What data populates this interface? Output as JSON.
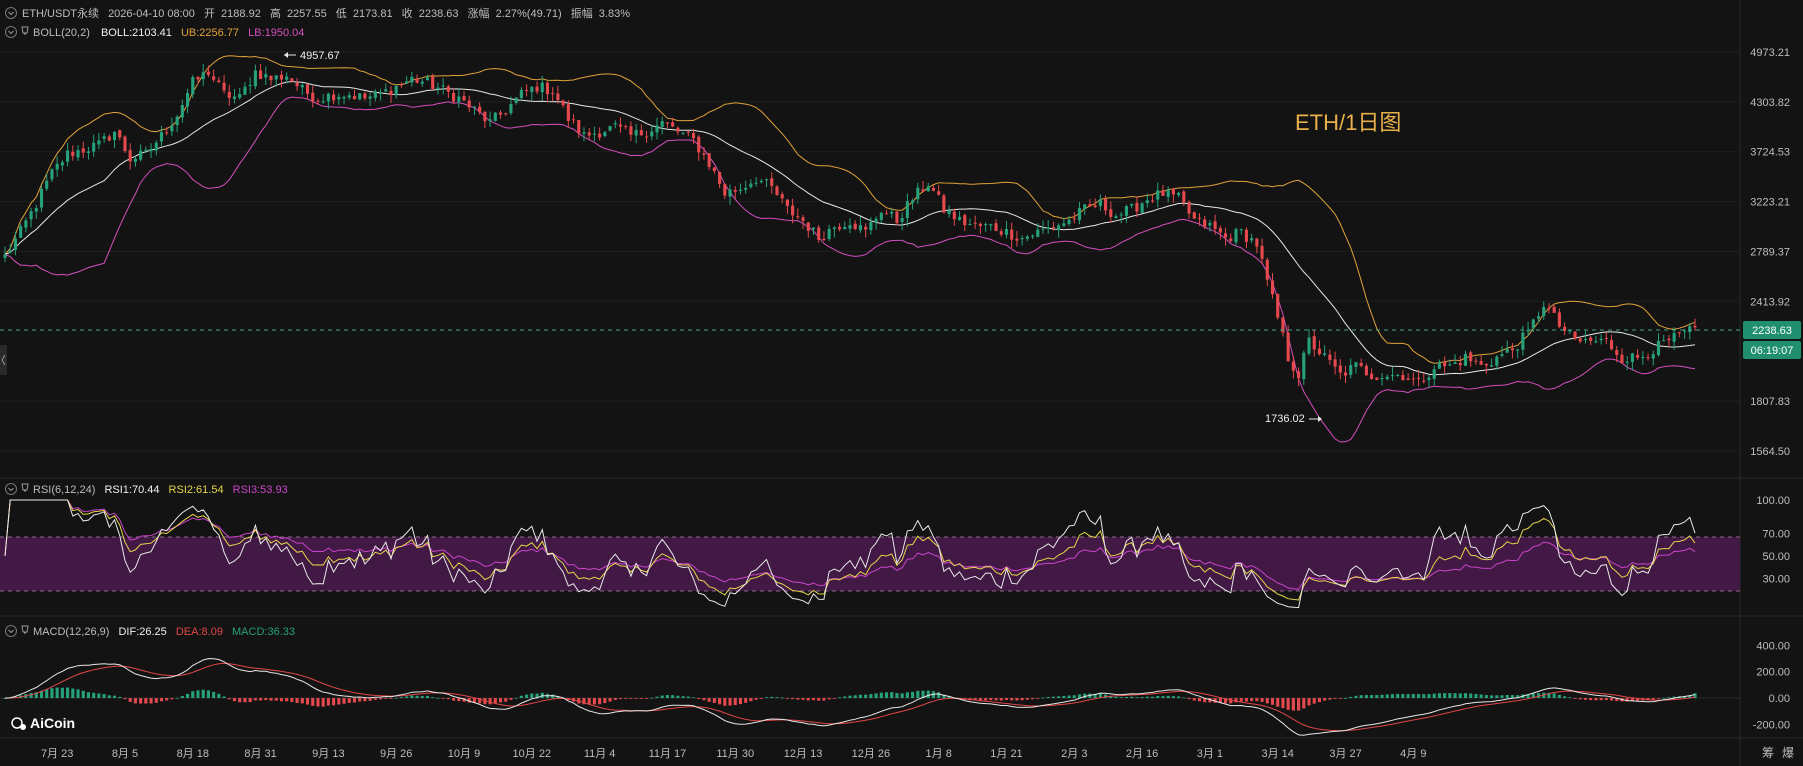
{
  "header": {
    "row1": {
      "symbol": "ETH/USDT永续",
      "datetime": "2026-04-10 08:00",
      "open_label": "开",
      "open": "2188.92",
      "high_label": "高",
      "high": "2257.55",
      "low_label": "低",
      "low": "2173.81",
      "close_label": "收",
      "close": "2238.63",
      "change_label": "涨幅",
      "change": "2.27%(49.71)",
      "amp_label": "振幅",
      "amp": "3.83%"
    },
    "row2": {
      "name": "BOLL(20,2)",
      "mid": "BOLL:2103.41",
      "ub": "UB:2256.77",
      "lb": "LB:1950.04"
    }
  },
  "watermark": "ETH/1日图",
  "annotations": {
    "high": "4957.67",
    "low": "1736.02"
  },
  "price_tag": {
    "price": "2238.63",
    "countdown": "06:19:07"
  },
  "rsi_header": {
    "name": "RSI(6,12,24)",
    "rsi1": "RSI1:70.44",
    "rsi2": "RSI2:61.54",
    "rsi3": "RSI3:53.93"
  },
  "macd_header": {
    "name": "MACD(12,26,9)",
    "dif": "DIF:26.25",
    "dea": "DEA:8.09",
    "macd": "MACD:36.33"
  },
  "logo": "AiCoin",
  "right_buttons": [
    "筹",
    "爆"
  ],
  "colors": {
    "up": "#26a17b",
    "down": "#e5494d",
    "mid": "#e8e8e8",
    "ub": "#e0a23a",
    "lb": "#d44fbf",
    "rsi1": "#e8e8e8",
    "rsi2": "#e6d64a",
    "rsi3": "#cc44cc",
    "dif": "#e8e8e8",
    "dea": "#e04848"
  },
  "chart_data": [
    {
      "type": "candlestick",
      "title": "ETH/USDT永续",
      "interval": "1日",
      "y_ticks": [
        "4973.21",
        "4303.82",
        "3724.53",
        "3223.21",
        "2789.37",
        "2413.92",
        "1807.83",
        "1564.50"
      ],
      "ylim": [
        1480,
        5150
      ],
      "x_ticks": [
        "7月 23",
        "8月 5",
        "8月 18",
        "8月 31",
        "9月 13",
        "9月 26",
        "10月 9",
        "10月 22",
        "11月 4",
        "11月 17",
        "11月 30",
        "12月 13",
        "12月 26",
        "1月 8",
        "1月 21",
        "2月 3",
        "2月 16",
        "3月 1",
        "3月 14",
        "3月 27",
        "4月 9"
      ],
      "close_points": [
        [
          0,
          2750
        ],
        [
          3,
          2950
        ],
        [
          6,
          3200
        ],
        [
          9,
          3500
        ],
        [
          12,
          3700
        ],
        [
          15,
          3750
        ],
        [
          18,
          3800
        ],
        [
          21,
          3950
        ],
        [
          24,
          3650
        ],
        [
          27,
          3700
        ],
        [
          30,
          3900
        ],
        [
          33,
          4150
        ],
        [
          36,
          4550
        ],
        [
          39,
          4700
        ],
        [
          42,
          4400
        ],
        [
          45,
          4350
        ],
        [
          48,
          4700
        ],
        [
          51,
          4600
        ],
        [
          54,
          4650
        ],
        [
          57,
          4450
        ],
        [
          60,
          4350
        ],
        [
          63,
          4400
        ],
        [
          66,
          4400
        ],
        [
          69,
          4350
        ],
        [
          72,
          4400
        ],
        [
          75,
          4500
        ],
        [
          78,
          4600
        ],
        [
          81,
          4550
        ],
        [
          84,
          4450
        ],
        [
          87,
          4350
        ],
        [
          90,
          4200
        ],
        [
          93,
          4050
        ],
        [
          96,
          4200
        ],
        [
          99,
          4400
        ],
        [
          102,
          4500
        ],
        [
          105,
          4450
        ],
        [
          108,
          4100
        ],
        [
          111,
          3900
        ],
        [
          114,
          3950
        ],
        [
          117,
          4000
        ],
        [
          120,
          3900
        ],
        [
          123,
          3950
        ],
        [
          126,
          4050
        ],
        [
          129,
          3950
        ],
        [
          132,
          3850
        ],
        [
          135,
          3600
        ],
        [
          138,
          3300
        ],
        [
          141,
          3350
        ],
        [
          144,
          3450
        ],
        [
          147,
          3350
        ],
        [
          150,
          3150
        ],
        [
          153,
          3050
        ],
        [
          156,
          2900
        ],
        [
          159,
          3000
        ],
        [
          162,
          3050
        ],
        [
          165,
          2950
        ],
        [
          168,
          3150
        ],
        [
          171,
          3050
        ],
        [
          174,
          3250
        ],
        [
          177,
          3400
        ],
        [
          180,
          3150
        ],
        [
          183,
          3050
        ],
        [
          186,
          3000
        ],
        [
          189,
          3000
        ],
        [
          192,
          2950
        ],
        [
          195,
          2900
        ],
        [
          198,
          2950
        ],
        [
          201,
          3000
        ],
        [
          204,
          3050
        ],
        [
          207,
          3150
        ],
        [
          210,
          3200
        ],
        [
          213,
          3100
        ],
        [
          216,
          3150
        ],
        [
          219,
          3250
        ],
        [
          222,
          3300
        ],
        [
          225,
          3250
        ],
        [
          228,
          3050
        ],
        [
          231,
          3000
        ],
        [
          234,
          2900
        ],
        [
          237,
          2950
        ],
        [
          240,
          2850
        ],
        [
          242,
          2550
        ],
        [
          244,
          2300
        ],
        [
          246,
          2050
        ],
        [
          248,
          1950
        ],
        [
          250,
          2150
        ],
        [
          253,
          2050
        ],
        [
          256,
          1950
        ],
        [
          259,
          2000
        ],
        [
          262,
          1950
        ],
        [
          265,
          1950
        ],
        [
          268,
          1950
        ],
        [
          271,
          1900
        ],
        [
          274,
          2000
        ],
        [
          277,
          2000
        ],
        [
          280,
          2050
        ],
        [
          283,
          2000
        ],
        [
          286,
          2050
        ],
        [
          289,
          2100
        ],
        [
          292,
          2200
        ],
        [
          295,
          2400
        ],
        [
          298,
          2250
        ],
        [
          301,
          2150
        ],
        [
          304,
          2150
        ],
        [
          307,
          2150
        ],
        [
          310,
          2050
        ],
        [
          313,
          2050
        ],
        [
          316,
          2100
        ],
        [
          319,
          2150
        ],
        [
          322,
          2200
        ],
        [
          324,
          2238.63
        ]
      ],
      "annotations": [
        {
          "label": "4957.67",
          "type": "high"
        },
        {
          "label": "1736.02",
          "type": "low"
        }
      ],
      "last_price": 2238.63,
      "bollinger": {
        "mid": 2103.41,
        "ub": 2256.77,
        "lb": 1950.04
      }
    },
    {
      "type": "line",
      "title": "RSI(6,12,24)",
      "y_ticks": [
        "100.00",
        "70.00",
        "50.00",
        "30.00"
      ],
      "ylim": [
        0,
        100
      ],
      "bands": [
        30,
        70
      ],
      "series": [
        {
          "name": "RSI1",
          "last": 70.44
        },
        {
          "name": "RSI2",
          "last": 61.54
        },
        {
          "name": "RSI3",
          "last": 53.93
        }
      ]
    },
    {
      "type": "bar",
      "title": "MACD(12,26,9)",
      "y_ticks": [
        "400.00",
        "200.00",
        "0.00",
        "-200.00"
      ],
      "ylim": [
        -280,
        440
      ],
      "series": [
        {
          "name": "DIF",
          "last": 26.25
        },
        {
          "name": "DEA",
          "last": 8.09
        },
        {
          "name": "MACD",
          "last": 36.33
        }
      ]
    }
  ]
}
